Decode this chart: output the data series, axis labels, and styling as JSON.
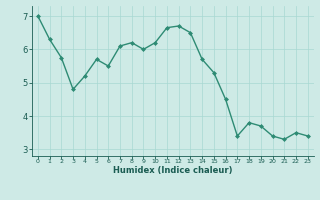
{
  "x": [
    0,
    1,
    2,
    3,
    4,
    5,
    6,
    7,
    8,
    9,
    10,
    11,
    12,
    13,
    14,
    15,
    16,
    17,
    18,
    19,
    20,
    21,
    22,
    23
  ],
  "y": [
    7.0,
    6.3,
    5.75,
    4.8,
    5.2,
    5.7,
    5.5,
    6.1,
    6.2,
    6.0,
    6.2,
    6.65,
    6.7,
    6.5,
    5.7,
    5.3,
    4.5,
    3.4,
    3.8,
    3.7,
    3.4,
    3.3,
    3.5,
    3.4
  ],
  "line_color": "#2e8b74",
  "marker_color": "#2e8b74",
  "bg_color": "#ceeae6",
  "grid_color": "#a8d8d2",
  "xlabel": "Humidex (Indice chaleur)",
  "xlabel_color": "#1a5c52",
  "tick_color": "#1a5c52",
  "ylim": [
    2.8,
    7.3
  ],
  "xlim": [
    -0.5,
    23.5
  ],
  "yticks": [
    3,
    4,
    5,
    6,
    7
  ],
  "xticks": [
    0,
    1,
    2,
    3,
    4,
    5,
    6,
    7,
    8,
    9,
    10,
    11,
    12,
    13,
    14,
    15,
    16,
    17,
    18,
    19,
    20,
    21,
    22,
    23
  ],
  "xtick_labels": [
    "0",
    "1",
    "2",
    "3",
    "4",
    "5",
    "6",
    "7",
    "8",
    "9",
    "10",
    "11",
    "12",
    "13",
    "14",
    "15",
    "16",
    "17",
    "18",
    "19",
    "20",
    "21",
    "22",
    "23"
  ]
}
